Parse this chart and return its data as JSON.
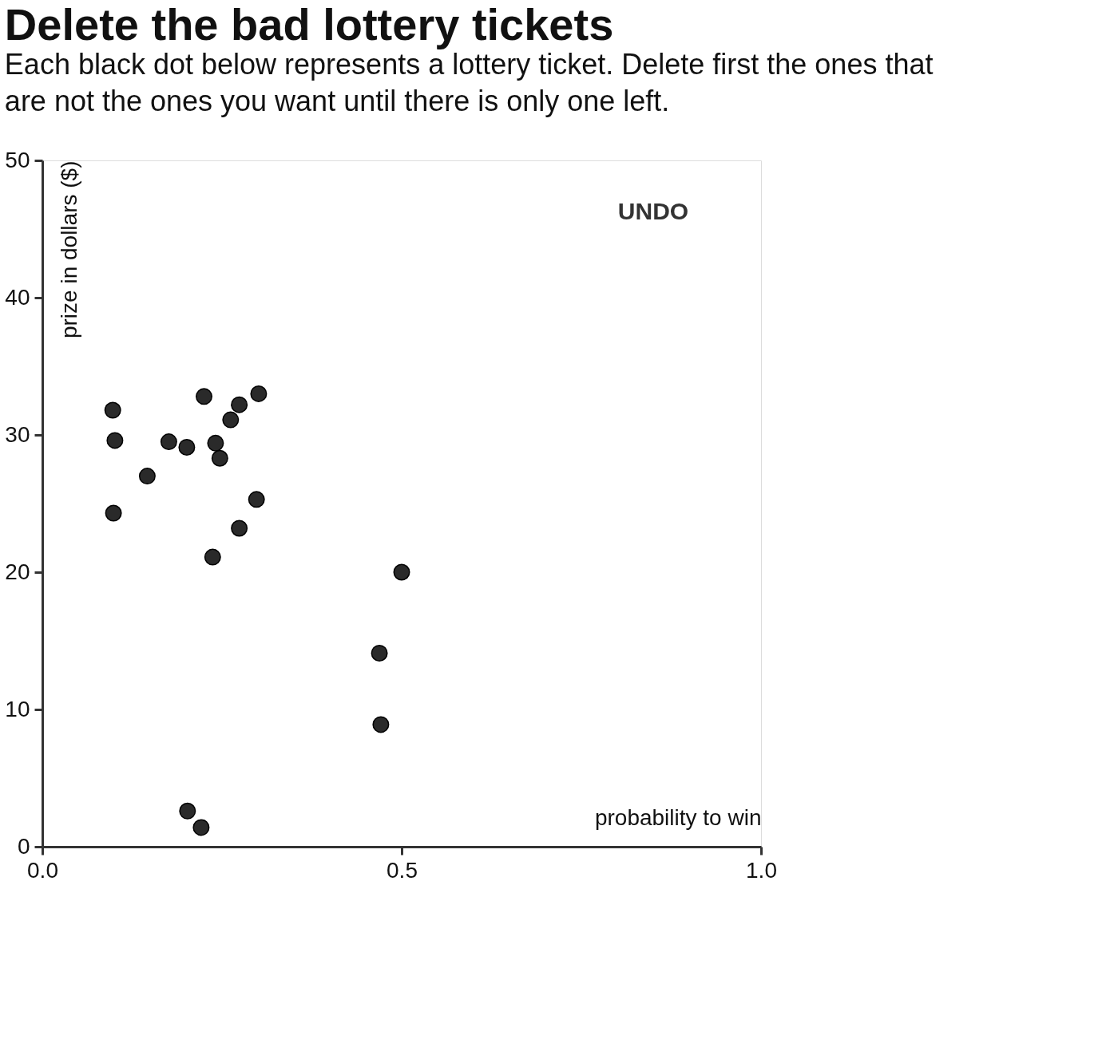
{
  "chart_data": {
    "type": "scatter",
    "title": "Delete the bad lottery tickets",
    "subtitle": [
      "Each black dot below represents a lottery ticket. Delete first the ones that",
      "are not the ones you want until there is only one left."
    ],
    "xlabel": "probability to win",
    "ylabel": "prize in dollars ($)",
    "x": [
      0.098,
      0.101,
      0.099,
      0.146,
      0.176,
      0.201,
      0.225,
      0.241,
      0.247,
      0.262,
      0.274,
      0.301,
      0.298,
      0.274,
      0.237,
      0.5,
      0.469,
      0.471,
      0.202,
      0.221
    ],
    "series": [
      {
        "color": "#2a2a2a",
        "values": [
          31.8,
          29.6,
          24.3,
          27.0,
          29.5,
          29.1,
          32.8,
          29.4,
          28.3,
          31.1,
          32.2,
          33.0,
          25.3,
          23.2,
          21.1,
          20.0,
          14.1,
          8.9,
          2.6,
          1.4
        ]
      }
    ],
    "xlim": [
      0,
      1
    ],
    "xticks": [
      {
        "value": 0,
        "label": "0.0"
      },
      {
        "value": 0.5,
        "label": "0.5"
      },
      {
        "value": 1,
        "label": "1.0"
      }
    ],
    "ylim": [
      0,
      50
    ],
    "yticks": [
      0,
      10,
      20,
      30,
      40,
      50
    ],
    "marker": "circle",
    "grid": false,
    "annotations": [
      "UNDO"
    ]
  }
}
